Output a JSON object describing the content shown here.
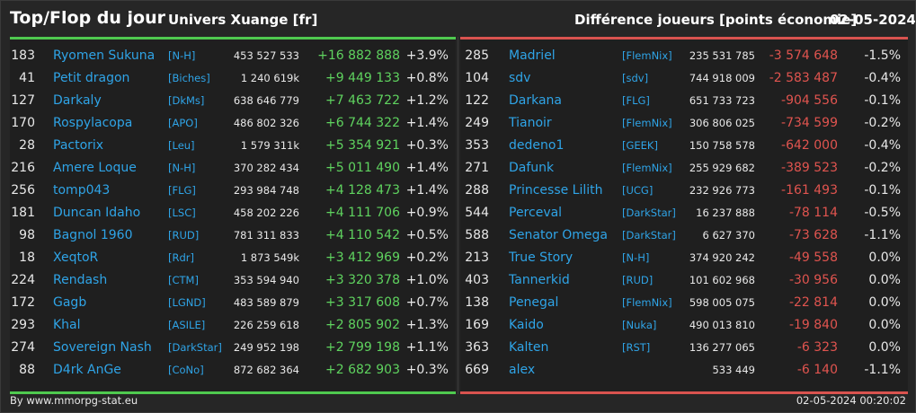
{
  "header": {
    "title": "Top/Flop du jour",
    "universe": "Univers Xuange [fr]",
    "subtitle": "Différence joueurs [points économie]",
    "date": "02-05-2024"
  },
  "colors": {
    "accent_top": "#4fc94f",
    "accent_flop": "#d9534f",
    "link": "#2fa4e7"
  },
  "top": [
    {
      "rank": "183",
      "name": "Ryomen Sukuna",
      "ally": "[N-H]",
      "points": "453 527 533",
      "diff": "+16 882 888",
      "pct": "+3.9%"
    },
    {
      "rank": "41",
      "name": "Petit dragon",
      "ally": "[Biches]",
      "points": "1 240 619k",
      "diff": "+9 449 133",
      "pct": "+0.8%"
    },
    {
      "rank": "127",
      "name": "Darkaly",
      "ally": "[DkMs]",
      "points": "638 646 779",
      "diff": "+7 463 722",
      "pct": "+1.2%"
    },
    {
      "rank": "170",
      "name": "Rospylacopa",
      "ally": "[APO]",
      "points": "486 802 326",
      "diff": "+6 744 322",
      "pct": "+1.4%"
    },
    {
      "rank": "28",
      "name": "Pactorix",
      "ally": "[Leu]",
      "points": "1 579 311k",
      "diff": "+5 354 921",
      "pct": "+0.3%"
    },
    {
      "rank": "216",
      "name": "Amere Loque",
      "ally": "[N-H]",
      "points": "370 282 434",
      "diff": "+5 011 490",
      "pct": "+1.4%"
    },
    {
      "rank": "256",
      "name": "tomp043",
      "ally": "[FLG]",
      "points": "293 984 748",
      "diff": "+4 128 473",
      "pct": "+1.4%"
    },
    {
      "rank": "181",
      "name": "Duncan Idaho",
      "ally": "[LSC]",
      "points": "458 202 226",
      "diff": "+4 111 706",
      "pct": "+0.9%"
    },
    {
      "rank": "98",
      "name": "Bagnol 1960",
      "ally": "[RUD]",
      "points": "781 311 833",
      "diff": "+4 110 542",
      "pct": "+0.5%"
    },
    {
      "rank": "18",
      "name": "XeqtoR",
      "ally": "[Rdr]",
      "points": "1 873 549k",
      "diff": "+3 412 969",
      "pct": "+0.2%"
    },
    {
      "rank": "224",
      "name": "Rendash",
      "ally": "[CTM]",
      "points": "353 594 940",
      "diff": "+3 320 378",
      "pct": "+1.0%"
    },
    {
      "rank": "172",
      "name": "Gagb",
      "ally": "[LGND]",
      "points": "483 589 879",
      "diff": "+3 317 608",
      "pct": "+0.7%"
    },
    {
      "rank": "293",
      "name": "Khal",
      "ally": "[ASILE]",
      "points": "226 259 618",
      "diff": "+2 805 902",
      "pct": "+1.3%"
    },
    {
      "rank": "274",
      "name": "Sovereign Nash",
      "ally": "[DarkStar]",
      "points": "249 952 198",
      "diff": "+2 799 198",
      "pct": "+1.1%"
    },
    {
      "rank": "88",
      "name": "D4rk AnGe",
      "ally": "[CoNo]",
      "points": "872 682 364",
      "diff": "+2 682 903",
      "pct": "+0.3%"
    }
  ],
  "flop": [
    {
      "rank": "285",
      "name": "Madriel",
      "ally": "[FlemNix]",
      "points": "235 531 785",
      "diff": "-3 574 648",
      "pct": "-1.5%"
    },
    {
      "rank": "104",
      "name": "sdv",
      "ally": "[sdv]",
      "points": "744 918 009",
      "diff": "-2 583 487",
      "pct": "-0.4%"
    },
    {
      "rank": "122",
      "name": "Darkana",
      "ally": "[FLG]",
      "points": "651 733 723",
      "diff": "-904 556",
      "pct": "-0.1%"
    },
    {
      "rank": "249",
      "name": "Tianoir",
      "ally": "[FlemNix]",
      "points": "306 806 025",
      "diff": "-734 599",
      "pct": "-0.2%"
    },
    {
      "rank": "353",
      "name": "dedeno1",
      "ally": "[GEEK]",
      "points": "150 758 578",
      "diff": "-642 000",
      "pct": "-0.4%"
    },
    {
      "rank": "271",
      "name": "Dafunk",
      "ally": "[FlemNix]",
      "points": "255 929 682",
      "diff": "-389 523",
      "pct": "-0.2%"
    },
    {
      "rank": "288",
      "name": "Princesse Lilith",
      "ally": "[UCG]",
      "points": "232 926 773",
      "diff": "-161 493",
      "pct": "-0.1%"
    },
    {
      "rank": "544",
      "name": "Perceval",
      "ally": "[DarkStar]",
      "points": "16 237 888",
      "diff": "-78 114",
      "pct": "-0.5%"
    },
    {
      "rank": "588",
      "name": "Senator Omega",
      "ally": "[DarkStar]",
      "points": "6 627 370",
      "diff": "-73 628",
      "pct": "-1.1%"
    },
    {
      "rank": "213",
      "name": "True Story",
      "ally": "[N-H]",
      "points": "374 920 242",
      "diff": "-49 558",
      "pct": "0.0%"
    },
    {
      "rank": "403",
      "name": "Tannerkid",
      "ally": "[RUD]",
      "points": "101 602 968",
      "diff": "-30 956",
      "pct": "0.0%"
    },
    {
      "rank": "138",
      "name": "Penegal",
      "ally": "[FlemNix]",
      "points": "598 005 075",
      "diff": "-22 814",
      "pct": "0.0%"
    },
    {
      "rank": "169",
      "name": "Kaido",
      "ally": "[Nuka]",
      "points": "490 013 810",
      "diff": "-19 840",
      "pct": "0.0%"
    },
    {
      "rank": "363",
      "name": "Kalten",
      "ally": "[RST]",
      "points": "136 277 065",
      "diff": "-6 323",
      "pct": "0.0%"
    },
    {
      "rank": "669",
      "name": "alex",
      "ally": "",
      "points": "533 449",
      "diff": "-6 140",
      "pct": "-1.1%"
    }
  ],
  "footer": {
    "credit": "By www.mmorpg-stat.eu",
    "timestamp": "02-05-2024 00:20:02"
  }
}
